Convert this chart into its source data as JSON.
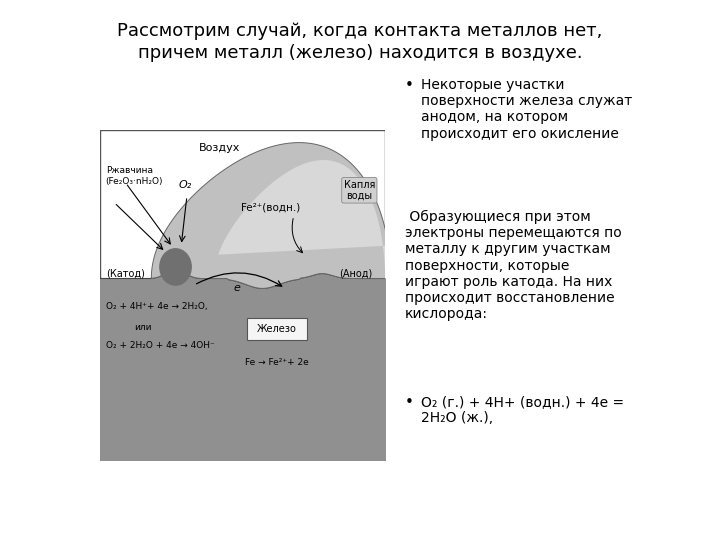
{
  "title_line1": "Рассмотрим случай, когда контакта металлов нет,",
  "title_line2": "причем металл (железо) находится в воздухе.",
  "title_fontsize": 13,
  "bullet1": "Некоторые участки\nповерхности железа служат\nанодом, на котором\nпроисходит его окисление",
  "paragraph": " Образующиеся при этом\nэлектроны перемещаются по\nметаллу к другим участкам\nповерхности, которые\nиграют роль катода. На них\nпроисходит восстановление\nкислорода:",
  "bullet2": "О₂ (г.) + 4H+ (водн.) + 4e =\n2H₂O (ж.),",
  "bg_color": "#ffffff",
  "text_color": "#000000",
  "diagram_label_vozduh": "Воздух",
  "diagram_label_rust": "Ржавчина\n(Fe₂O₃·nH₂O)",
  "diagram_label_o2": "O₂",
  "diagram_label_kapla": "Капля\nводы",
  "diagram_label_fe2plus": "Fe²⁺(водн.)",
  "diagram_label_katod": "(Катод)",
  "diagram_label_anod": "(Анод)",
  "diagram_label_e": "e",
  "diagram_label_zhelezo": "Железо",
  "diagram_eq1": "O₂ + 4H⁺+ 4e → 2H₂O,",
  "diagram_eq2": "или",
  "diagram_eq3": "O₂ + 2H₂O + 4e → 4OH⁻",
  "diagram_eq4": "Fe → Fe²⁺+ 2e",
  "iron_color": "#909090",
  "water_color": "#c0c0c0",
  "air_color": "#d8d8d8",
  "rust_color": "#707070"
}
